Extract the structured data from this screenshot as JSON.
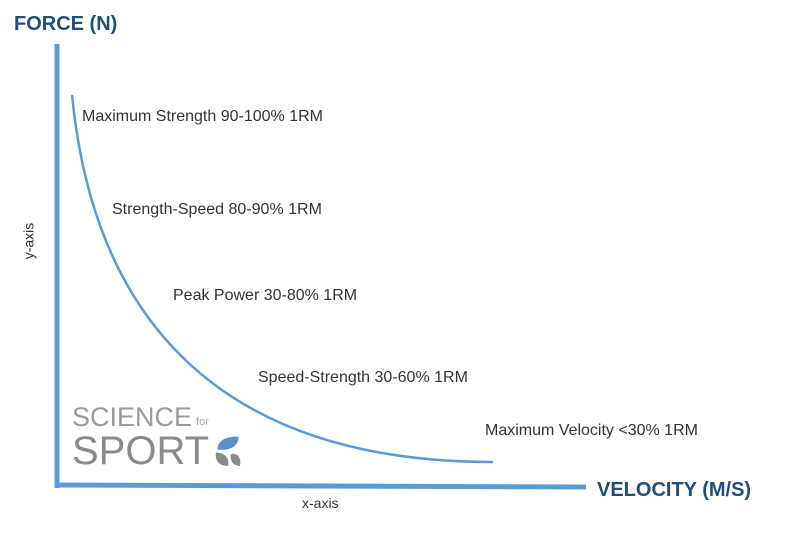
{
  "y_axis_title": "FORCE (N)",
  "x_axis_title": "VELOCITY (M/S)",
  "y_axis_name": "y-axis",
  "x_axis_name": "x-axis",
  "zones": [
    "Maximum Strength 90-100% 1RM",
    "Strength-Speed 80-90% 1RM",
    "Peak Power 30-80% 1RM",
    "Speed-Strength 30-60% 1RM",
    "Maximum Velocity <30% 1RM"
  ],
  "logo": {
    "line1": "SCIENCE",
    "small": "for",
    "line2": "SPORT"
  },
  "colors": {
    "axis": "#5b9bd5",
    "title": "#1f4e79",
    "text": "#333333",
    "logo_gray": "#8a8a8a"
  }
}
